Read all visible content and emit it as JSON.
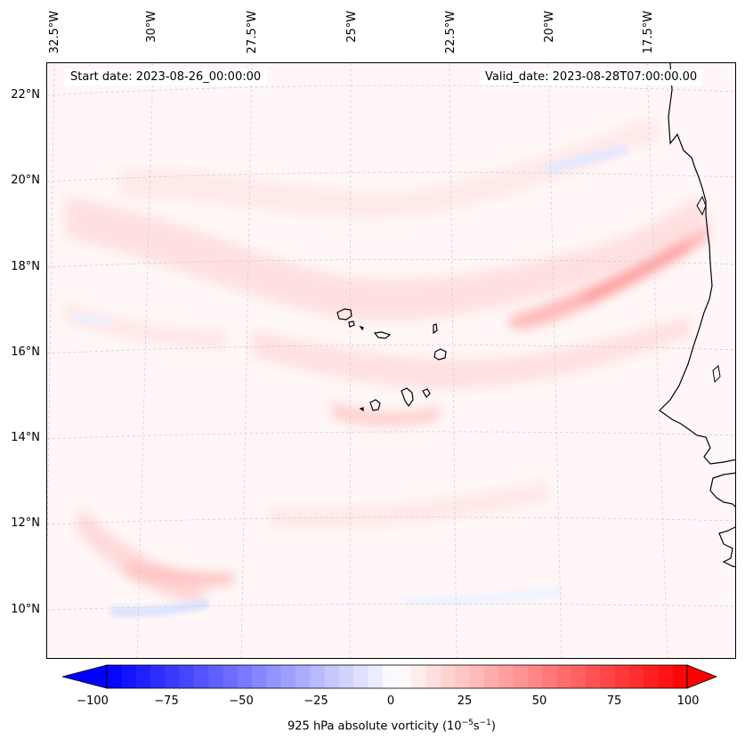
{
  "map": {
    "start_date": "Start date: 2023-08-26_00:00:00",
    "valid_date": "Valid_date: 2023-08-28T07:00:00.00",
    "longitude_labels": [
      "32.5°W",
      "30°W",
      "27.5°W",
      "25°W",
      "22.5°W",
      "20°W",
      "17.5°W"
    ],
    "latitude_labels": [
      "22°N",
      "20°N",
      "18°N",
      "16°N",
      "14°N",
      "12°N",
      "10°N"
    ],
    "field": "925 hPa absolute vorticity",
    "region": "Cape Verde Islands and West African coast"
  },
  "colorbar": {
    "ticks": [
      "−100",
      "−75",
      "−50",
      "−25",
      "0",
      "25",
      "50",
      "75",
      "100"
    ],
    "label_text": "925 hPa absolute vorticity (10",
    "label_exp1": "−5",
    "label_mid": "s",
    "label_exp2": "−1",
    "label_close": ")",
    "min": -100,
    "max": 100,
    "colormap": "bwr",
    "color_low": "#0000ff",
    "color_mid": "#ffffff",
    "color_high": "#ff0000"
  }
}
